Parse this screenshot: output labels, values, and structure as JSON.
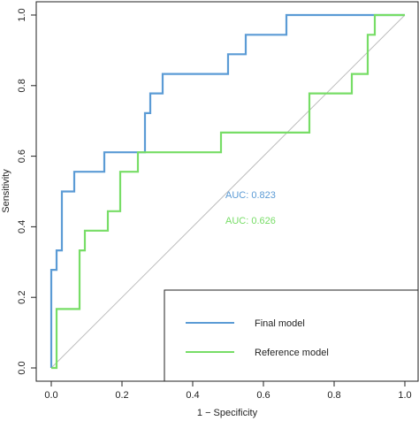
{
  "chart_data": {
    "type": "line",
    "xlabel": "1 − Specificity",
    "ylabel": "Sensitivity",
    "xlim": [
      0,
      1
    ],
    "ylim": [
      0,
      1
    ],
    "xticks": [
      "0.0",
      "0.2",
      "0.4",
      "0.6",
      "0.8",
      "1.0"
    ],
    "yticks": [
      "0.0",
      "0.2",
      "0.4",
      "0.6",
      "0.8",
      "1.0"
    ],
    "grid": false,
    "reference_line": {
      "from": [
        0,
        0
      ],
      "to": [
        1,
        1
      ],
      "color": "#bdbdbd"
    },
    "legend": {
      "placement": "bottom-right",
      "entries": [
        "Final model",
        "Reference model"
      ]
    },
    "series": [
      {
        "name": "Final model",
        "color": "#5b9bd5",
        "x": [
          0,
          0,
          0.015,
          0.015,
          0.03,
          0.03,
          0.065,
          0.065,
          0.15,
          0.15,
          0.265,
          0.265,
          0.28,
          0.28,
          0.315,
          0.315,
          0.5,
          0.5,
          0.55,
          0.55,
          0.665,
          0.665,
          1.0
        ],
        "y": [
          0,
          0.278,
          0.278,
          0.333,
          0.333,
          0.5,
          0.5,
          0.556,
          0.556,
          0.611,
          0.611,
          0.722,
          0.722,
          0.778,
          0.778,
          0.833,
          0.833,
          0.889,
          0.889,
          0.944,
          0.944,
          1.0,
          1.0
        ]
      },
      {
        "name": "Reference model",
        "color": "#77dd66",
        "x": [
          0,
          0.015,
          0.015,
          0.08,
          0.08,
          0.095,
          0.095,
          0.16,
          0.16,
          0.195,
          0.195,
          0.245,
          0.245,
          0.48,
          0.48,
          0.73,
          0.73,
          0.85,
          0.85,
          0.895,
          0.895,
          0.915,
          0.915,
          1.0
        ],
        "y": [
          0,
          0,
          0.167,
          0.167,
          0.333,
          0.333,
          0.389,
          0.389,
          0.444,
          0.444,
          0.556,
          0.556,
          0.611,
          0.611,
          0.667,
          0.667,
          0.778,
          0.778,
          0.833,
          0.833,
          0.944,
          0.944,
          1.0,
          1.0
        ]
      }
    ],
    "annotations": [
      {
        "text": "AUC: 0.823",
        "color": "#5b9bd5"
      },
      {
        "text": "AUC: 0.626",
        "color": "#77dd66"
      }
    ]
  }
}
